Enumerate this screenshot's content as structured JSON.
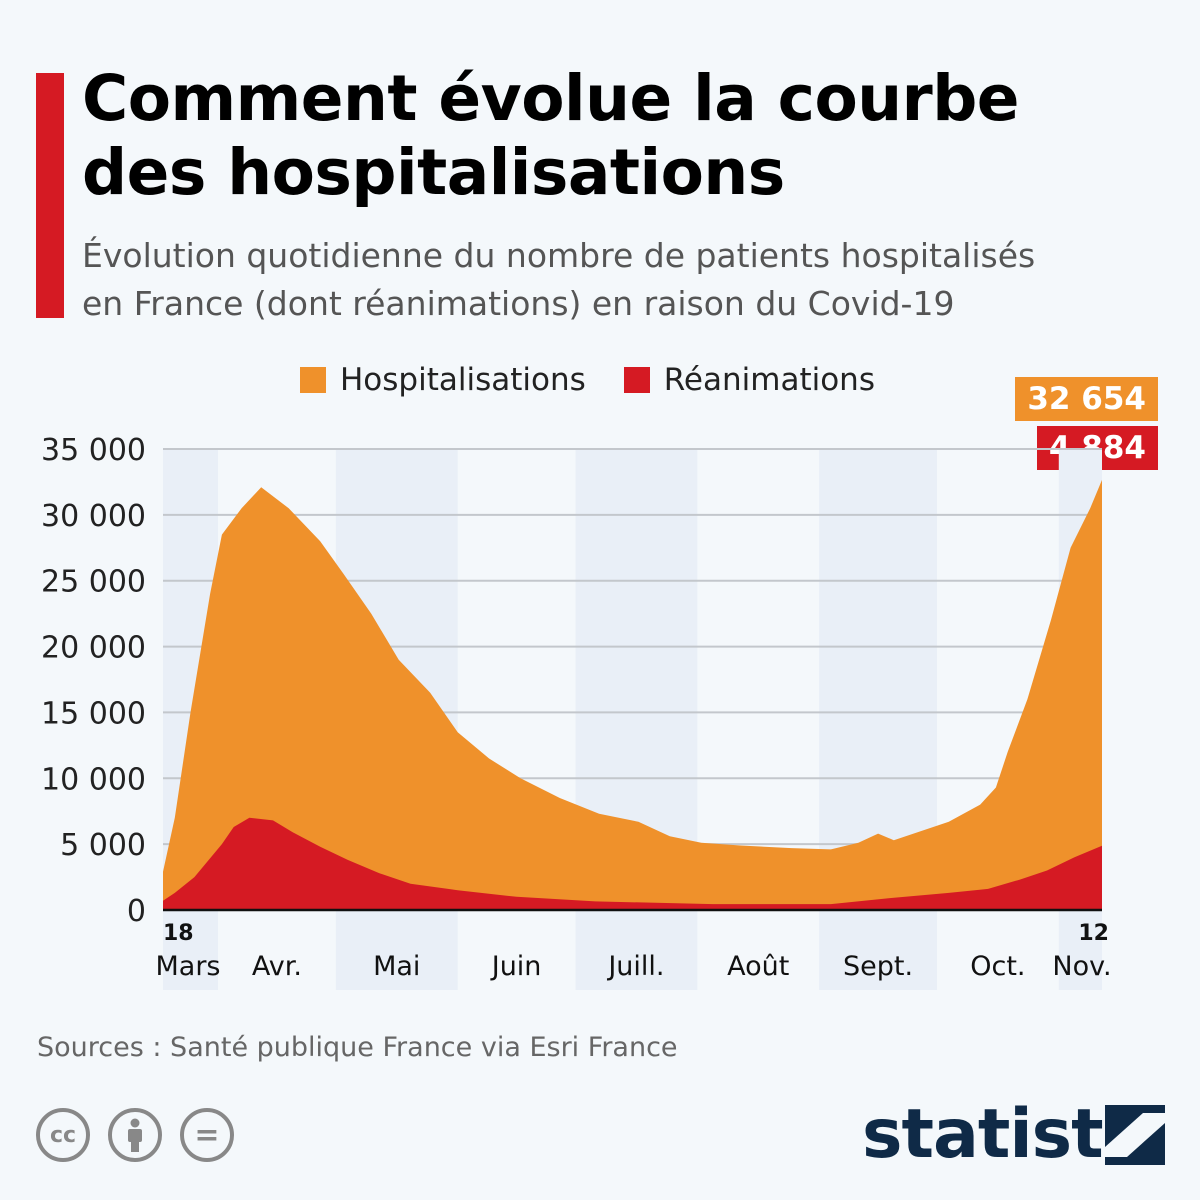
{
  "title_lines": [
    "Comment évolue la courbe",
    "des hospitalisations"
  ],
  "subtitle_lines": [
    "Évolution quotidienne du nombre de patients hospitalisés",
    "en France (dont réanimations) en raison du Covid-19"
  ],
  "colors": {
    "hosp": "#ef912b",
    "rea": "#d51a23",
    "accent": "#d51a23"
  },
  "chart_data": {
    "type": "area",
    "title": "Comment évolue la courbe des hospitalisations",
    "xlabel": "",
    "ylabel": "",
    "ylim": [
      0,
      35000
    ],
    "yticks": [
      0,
      5000,
      10000,
      15000,
      20000,
      25000,
      30000,
      35000
    ],
    "ytick_labels": [
      "0",
      "5 000",
      "10 000",
      "15 000",
      "20 000",
      "25 000",
      "30 000",
      "35 000"
    ],
    "x_unit": "days since 18 March",
    "xlim": [
      0,
      239
    ],
    "start_label": "18",
    "end_label": "12",
    "months": [
      {
        "label": "Mars",
        "start": 0,
        "end": 13
      },
      {
        "label": "Avr.",
        "start": 14,
        "end": 43
      },
      {
        "label": "Mai",
        "start": 44,
        "end": 74
      },
      {
        "label": "Juin",
        "start": 75,
        "end": 104
      },
      {
        "label": "Juill.",
        "start": 105,
        "end": 135
      },
      {
        "label": "Août",
        "start": 136,
        "end": 166
      },
      {
        "label": "Sept.",
        "start": 167,
        "end": 196
      },
      {
        "label": "Oct.",
        "start": 197,
        "end": 227
      },
      {
        "label": "Nov.",
        "start": 228,
        "end": 239
      }
    ],
    "legend": [
      "Hospitalisations",
      "Réanimations"
    ],
    "legend_position": "top-center",
    "series": [
      {
        "name": "Hospitalisations",
        "x": [
          0,
          3,
          7,
          12,
          15,
          20,
          25,
          32,
          40,
          46,
          53,
          60,
          68,
          75,
          83,
          91,
          101,
          111,
          121,
          129,
          137,
          147,
          160,
          170,
          177,
          182,
          186,
          193,
          200,
          208,
          212,
          215,
          220,
          226,
          231,
          236,
          239
        ],
        "values": [
          2900,
          7000,
          15000,
          24000,
          28500,
          30500,
          32100,
          30500,
          28000,
          25500,
          22500,
          19000,
          16500,
          13500,
          11500,
          10000,
          8500,
          7300,
          6700,
          5600,
          5100,
          4900,
          4700,
          4600,
          5100,
          5800,
          5300,
          6000,
          6700,
          8000,
          9300,
          12000,
          16000,
          22000,
          27500,
          30500,
          32654
        ]
      },
      {
        "name": "Réanimations",
        "x": [
          0,
          3,
          8,
          15,
          18,
          22,
          28,
          33,
          40,
          47,
          55,
          63,
          75,
          90,
          110,
          140,
          170,
          185,
          200,
          210,
          218,
          225,
          232,
          239
        ],
        "values": [
          700,
          1300,
          2500,
          5000,
          6300,
          7000,
          6800,
          5900,
          4800,
          3800,
          2800,
          2000,
          1500,
          1000,
          650,
          450,
          450,
          900,
          1300,
          1600,
          2300,
          3000,
          4000,
          4884
        ]
      }
    ],
    "last_value_labels": [
      "32 654",
      "4 884"
    ]
  },
  "source": "Sources : Santé publique France via Esri France",
  "license_icons": [
    "cc",
    "by",
    "nd"
  ],
  "license_glyphs": [
    "cc",
    "="
  ],
  "brand": "statista"
}
